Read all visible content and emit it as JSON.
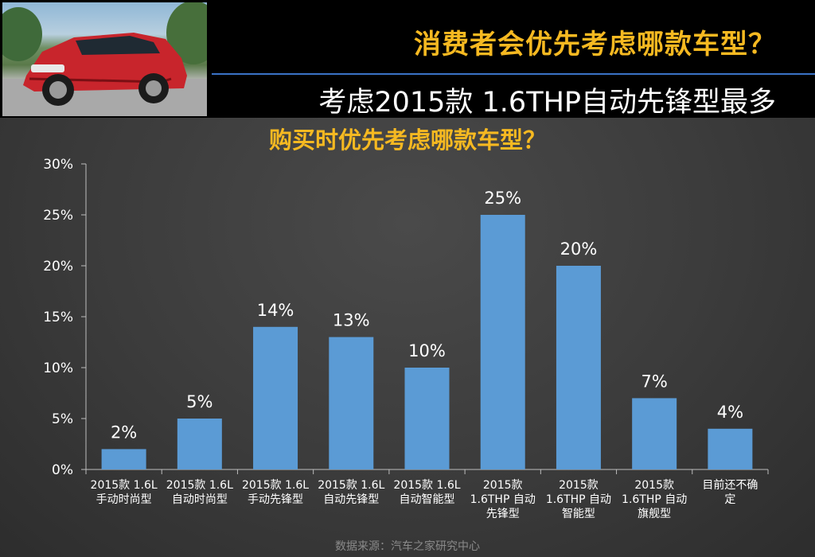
{
  "header": {
    "title": "消费者会优先考虑哪款车型？",
    "subtitle": "考虑2015款 1.6THP自动先锋型最多",
    "photo_icon": "car-photo"
  },
  "chart_data": {
    "type": "bar",
    "title": "购买时优先考虑哪款车型？",
    "categories": [
      [
        "2015款 1.6L",
        "手动时尚型"
      ],
      [
        "2015款 1.6L",
        "自动时尚型"
      ],
      [
        "2015款 1.6L",
        "手动先锋型"
      ],
      [
        "2015款 1.6L",
        "自动先锋型"
      ],
      [
        "2015款 1.6L",
        "自动智能型"
      ],
      [
        "2015款",
        "1.6THP 自动",
        "先锋型"
      ],
      [
        "2015款",
        "1.6THP 自动",
        "智能型"
      ],
      [
        "2015款",
        "1.6THP 自动",
        "旗舰型"
      ],
      [
        "目前还不确",
        "定"
      ]
    ],
    "values": [
      2,
      5,
      14,
      13,
      10,
      25,
      20,
      7,
      4
    ],
    "data_labels": [
      "2%",
      "5%",
      "14%",
      "13%",
      "10%",
      "25%",
      "20%",
      "7%",
      "4%"
    ],
    "ylim": [
      0,
      30
    ],
    "yticks": [
      "0%",
      "5%",
      "10%",
      "15%",
      "20%",
      "25%",
      "30%"
    ],
    "grid": false,
    "bar_color": "#5b9bd5"
  },
  "footer": {
    "source": "数据来源：汽车之家研究中心"
  }
}
